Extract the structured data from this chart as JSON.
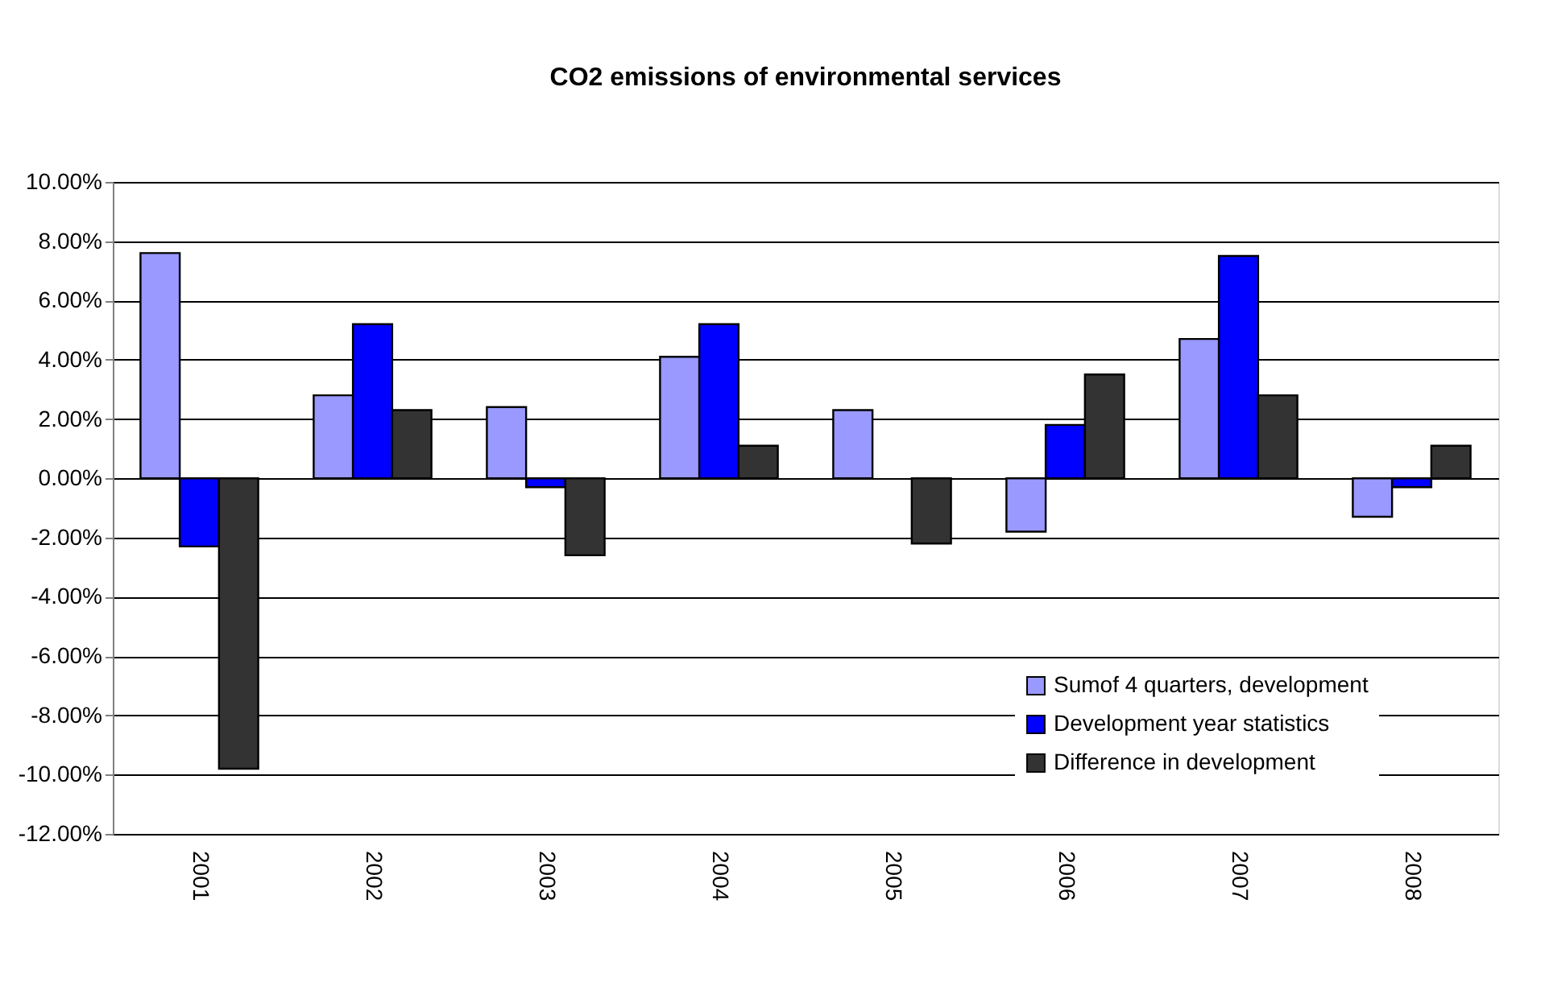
{
  "chart_data": {
    "type": "bar",
    "title": "CO2 emissions of environmental services",
    "categories": [
      "2001",
      "2002",
      "2003",
      "2004",
      "2005",
      "2006",
      "2007",
      "2008"
    ],
    "series": [
      {
        "name": "Sumof 4 quarters, development",
        "color": "#9999ff",
        "values": [
          7.6,
          2.8,
          2.4,
          4.1,
          2.3,
          -1.8,
          4.7,
          -1.3
        ]
      },
      {
        "name": "Development year statistics",
        "color": "#0000ff",
        "values": [
          -2.3,
          5.2,
          -0.3,
          5.2,
          null,
          1.8,
          7.5,
          -0.3
        ]
      },
      {
        "name": "Difference in development",
        "color": "#333333",
        "values": [
          -9.8,
          2.3,
          -2.6,
          1.1,
          -2.2,
          3.5,
          2.8,
          1.1
        ]
      }
    ],
    "ylim": [
      -12,
      10
    ],
    "yticks": [
      {
        "value": -12,
        "label": "-12.00%"
      },
      {
        "value": -10,
        "label": "-10.00%"
      },
      {
        "value": -8,
        "label": "-8.00%"
      },
      {
        "value": -6,
        "label": "-6.00%"
      },
      {
        "value": -4,
        "label": "-4.00%"
      },
      {
        "value": -2,
        "label": "-2.00%"
      },
      {
        "value": 0,
        "label": "0.00%"
      },
      {
        "value": 2,
        "label": "2.00%"
      },
      {
        "value": 4,
        "label": "4.00%"
      },
      {
        "value": 6,
        "label": "6.00%"
      },
      {
        "value": 8,
        "label": "8.00%"
      },
      {
        "value": 10,
        "label": "10.00%"
      }
    ],
    "grid": "y",
    "legend": "bottom right"
  }
}
